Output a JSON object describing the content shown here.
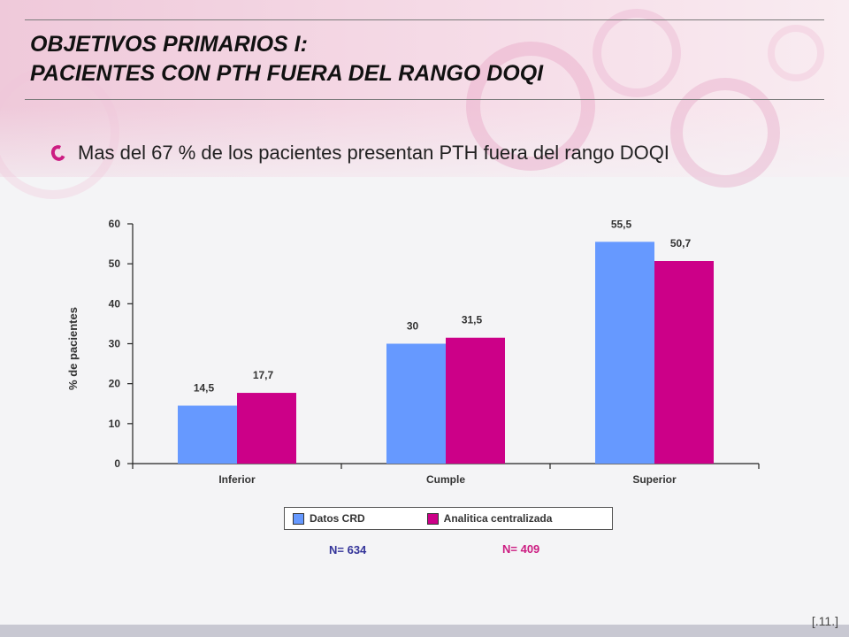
{
  "slide": {
    "title_line1": "OBJETIVOS PRIMARIOS I:",
    "title_line2": "PACIENTES CON PTH FUERA DEL RANGO DOQI",
    "bullet": "Mas del 67 % de los pacientes presentan PTH fuera del rango DOQI",
    "n_crd": "N= 634",
    "n_central": "N= 409",
    "slide_number": "[.11.]",
    "colors": {
      "crd": "#6699ff",
      "central": "#cc0088",
      "n_crd": "#333399",
      "n_central": "#cc1d82"
    }
  },
  "chart_data": {
    "type": "bar",
    "title": "",
    "xlabel": "",
    "ylabel": "% de pacientes",
    "ylim": [
      0,
      60
    ],
    "yticks": [
      0,
      10,
      20,
      30,
      40,
      50,
      60
    ],
    "categories": [
      "Inferior",
      "Cumple",
      "Superior"
    ],
    "series": [
      {
        "name": "Datos CRD",
        "values": [
          14.5,
          30,
          55.5
        ],
        "labels": [
          "14,5",
          "30",
          "55,5"
        ]
      },
      {
        "name": "Analitica centralizada",
        "values": [
          17.7,
          31.5,
          50.7
        ],
        "labels": [
          "17,7",
          "31,5",
          "50,7"
        ]
      }
    ],
    "legend": "bottom-center",
    "grid": false
  }
}
